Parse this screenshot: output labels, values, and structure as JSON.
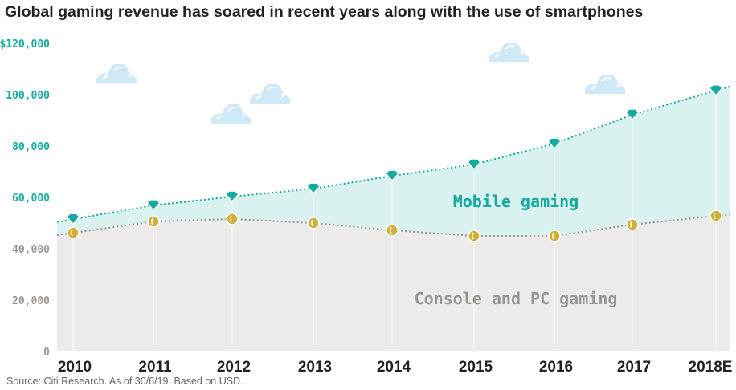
{
  "title": "Global gaming revenue has soared in recent years along with the use of smartphones",
  "source": "Source: Citi Research. As of 30/6/19. Based on USD.",
  "colors": {
    "mobile": "#13aaa0",
    "mobile_fill": "#d9f2f0",
    "console": "#9b9590",
    "console_fill": "#ecebe9",
    "coin": "#cfae3a",
    "cloud": "#cfe9f6"
  },
  "chart_data": {
    "type": "area",
    "stacked": true,
    "title": "Global gaming revenue has soared in recent years along with the use of smartphones",
    "categories": [
      "2010",
      "2011",
      "2012",
      "2013",
      "2014",
      "2015",
      "2016",
      "2017",
      "2018E"
    ],
    "ylim": [
      0,
      120000
    ],
    "yticks": [
      0,
      20000,
      40000,
      60000,
      80000,
      100000,
      120000
    ],
    "ytick_labels": [
      "0",
      "20,000",
      "40,000",
      "60,000",
      "80,000",
      "100,000",
      "$120,000"
    ],
    "series": [
      {
        "name": "Console and PC gaming",
        "values": [
          46200,
          50600,
          51600,
          50000,
          47200,
          45000,
          45000,
          49400,
          52800
        ]
      },
      {
        "name": "Mobile gaming",
        "values": [
          5300,
          6300,
          8700,
          13400,
          21200,
          27800,
          35900,
          42800,
          48800
        ]
      }
    ],
    "totals": [
      51500,
      56900,
      60300,
      63400,
      68400,
      72800,
      80900,
      92200,
      101600
    ],
    "legend": "inline labels",
    "grid": false
  }
}
